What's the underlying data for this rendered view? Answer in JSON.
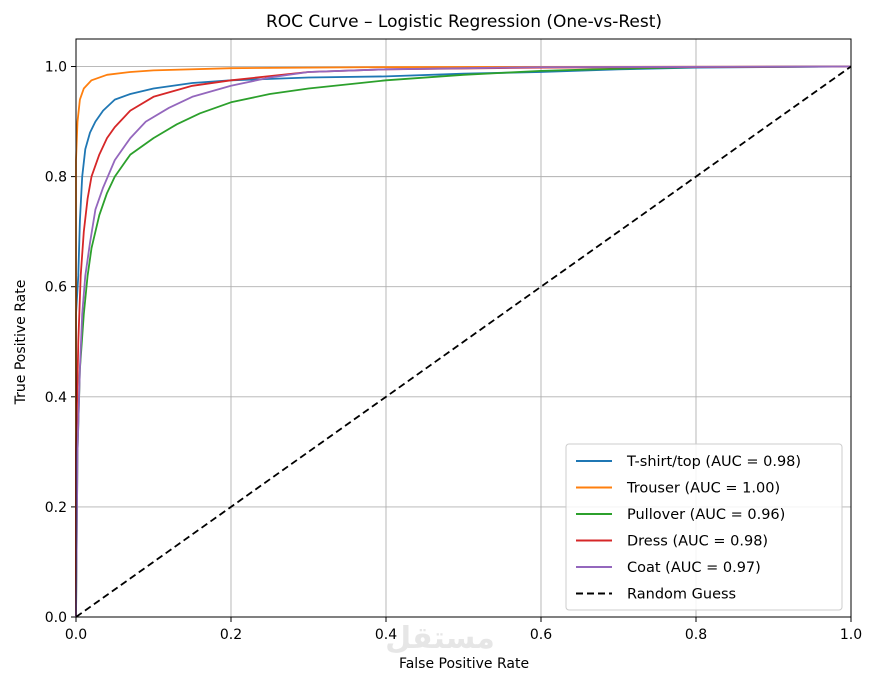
{
  "chart_data": {
    "type": "line",
    "title": "ROC Curve – Logistic Regression (One-vs-Rest)",
    "xlabel": "False Positive Rate",
    "ylabel": "True Positive Rate",
    "xlim": [
      0,
      1
    ],
    "ylim": [
      0,
      1.05
    ],
    "xticks": [
      "0.0",
      "0.2",
      "0.4",
      "0.6",
      "0.8",
      "1.0"
    ],
    "yticks": [
      "0.0",
      "0.2",
      "0.4",
      "0.6",
      "0.8",
      "1.0"
    ],
    "grid": true,
    "legend_position": "lower-right",
    "series": [
      {
        "name": "T-shirt/top (AUC = 0.98)",
        "color": "#1f77b4",
        "style": "solid",
        "points": [
          [
            0,
            0
          ],
          [
            0,
            0.55
          ],
          [
            0.003,
            0.62
          ],
          [
            0.005,
            0.72
          ],
          [
            0.008,
            0.8
          ],
          [
            0.012,
            0.85
          ],
          [
            0.018,
            0.88
          ],
          [
            0.025,
            0.9
          ],
          [
            0.035,
            0.92
          ],
          [
            0.05,
            0.94
          ],
          [
            0.07,
            0.95
          ],
          [
            0.1,
            0.96
          ],
          [
            0.15,
            0.97
          ],
          [
            0.2,
            0.975
          ],
          [
            0.3,
            0.98
          ],
          [
            0.4,
            0.982
          ],
          [
            0.5,
            0.987
          ],
          [
            0.6,
            0.99
          ],
          [
            0.7,
            0.995
          ],
          [
            0.8,
            0.998
          ],
          [
            1,
            1
          ]
        ]
      },
      {
        "name": "Trouser (AUC = 1.00)",
        "color": "#ff7f0e",
        "style": "solid",
        "points": [
          [
            0,
            0
          ],
          [
            0,
            0.83
          ],
          [
            0.002,
            0.9
          ],
          [
            0.005,
            0.94
          ],
          [
            0.01,
            0.96
          ],
          [
            0.02,
            0.975
          ],
          [
            0.04,
            0.985
          ],
          [
            0.07,
            0.99
          ],
          [
            0.1,
            0.993
          ],
          [
            0.2,
            0.997
          ],
          [
            0.4,
            0.999
          ],
          [
            1,
            1
          ]
        ]
      },
      {
        "name": "Pullover (AUC = 0.96)",
        "color": "#2ca02c",
        "style": "solid",
        "points": [
          [
            0,
            0
          ],
          [
            0.002,
            0.3
          ],
          [
            0.005,
            0.45
          ],
          [
            0.01,
            0.55
          ],
          [
            0.015,
            0.62
          ],
          [
            0.02,
            0.67
          ],
          [
            0.03,
            0.73
          ],
          [
            0.04,
            0.77
          ],
          [
            0.05,
            0.8
          ],
          [
            0.07,
            0.84
          ],
          [
            0.1,
            0.87
          ],
          [
            0.13,
            0.895
          ],
          [
            0.16,
            0.915
          ],
          [
            0.2,
            0.935
          ],
          [
            0.25,
            0.95
          ],
          [
            0.3,
            0.96
          ],
          [
            0.4,
            0.975
          ],
          [
            0.5,
            0.985
          ],
          [
            0.6,
            0.992
          ],
          [
            0.7,
            0.996
          ],
          [
            0.8,
            0.999
          ],
          [
            1,
            1
          ]
        ]
      },
      {
        "name": "Dress (AUC = 0.98)",
        "color": "#d62728",
        "style": "solid",
        "points": [
          [
            0,
            0
          ],
          [
            0,
            0.3
          ],
          [
            0.003,
            0.5
          ],
          [
            0.006,
            0.62
          ],
          [
            0.01,
            0.7
          ],
          [
            0.015,
            0.76
          ],
          [
            0.02,
            0.8
          ],
          [
            0.03,
            0.84
          ],
          [
            0.04,
            0.87
          ],
          [
            0.05,
            0.89
          ],
          [
            0.07,
            0.92
          ],
          [
            0.1,
            0.945
          ],
          [
            0.15,
            0.965
          ],
          [
            0.2,
            0.975
          ],
          [
            0.3,
            0.99
          ],
          [
            0.4,
            0.995
          ],
          [
            0.6,
            0.998
          ],
          [
            1,
            1
          ]
        ]
      },
      {
        "name": "Coat (AUC = 0.97)",
        "color": "#9467bd",
        "style": "solid",
        "points": [
          [
            0,
            0
          ],
          [
            0.002,
            0.3
          ],
          [
            0.005,
            0.45
          ],
          [
            0.008,
            0.55
          ],
          [
            0.012,
            0.62
          ],
          [
            0.018,
            0.68
          ],
          [
            0.025,
            0.74
          ],
          [
            0.035,
            0.78
          ],
          [
            0.05,
            0.83
          ],
          [
            0.07,
            0.87
          ],
          [
            0.09,
            0.9
          ],
          [
            0.12,
            0.925
          ],
          [
            0.15,
            0.945
          ],
          [
            0.2,
            0.965
          ],
          [
            0.25,
            0.98
          ],
          [
            0.3,
            0.99
          ],
          [
            0.4,
            0.995
          ],
          [
            0.6,
            0.999
          ],
          [
            1,
            1
          ]
        ]
      },
      {
        "name": "Random Guess",
        "color": "#000000",
        "style": "dashed",
        "points": [
          [
            0,
            0
          ],
          [
            1,
            1
          ]
        ]
      }
    ]
  },
  "watermark": {
    "text": "مستقل"
  }
}
